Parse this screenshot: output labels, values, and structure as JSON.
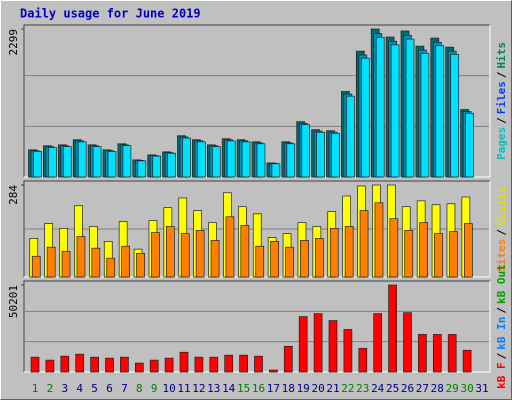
{
  "chart_data": [
    {
      "type": "bar",
      "title": "Daily usage for June 2019",
      "ylim": [
        0,
        2299
      ],
      "yticks": [
        2299
      ],
      "grid_divisions": 3,
      "legend_separator": "/",
      "legend": [
        {
          "name": "Pages",
          "color": "#00c0c0"
        },
        {
          "name": "Files",
          "color": "#0040ff"
        },
        {
          "name": "Hits",
          "color": "#008060"
        }
      ],
      "series": [
        {
          "color": "#006c6c",
          "values": [
            422,
            485,
            500,
            579,
            500,
            422,
            516,
            266,
            344,
            391,
            641,
            579,
            500,
            594,
            579,
            547,
            219,
            547,
            860,
            735,
            719,
            1329,
            1955,
            2299,
            2174,
            2268,
            2033,
            2158,
            2017,
            1048,
            0
          ]
        },
        {
          "color": "#0090c0",
          "values": [
            410,
            470,
            485,
            560,
            485,
            410,
            500,
            258,
            334,
            380,
            622,
            562,
            485,
            576,
            562,
            530,
            212,
            530,
            834,
            713,
            697,
            1289,
            1896,
            2230,
            2109,
            2200,
            1972,
            2093,
            1956,
            1017,
            0
          ]
        },
        {
          "color": "#00e0ff",
          "values": [
            398,
            458,
            472,
            546,
            472,
            398,
            487,
            251,
            325,
            369,
            605,
            546,
            472,
            561,
            546,
            516,
            206,
            516,
            812,
            694,
            679,
            1255,
            1846,
            2171,
            2053,
            2142,
            1920,
            2038,
            1905,
            990,
            0
          ]
        }
      ]
    },
    {
      "type": "bar",
      "ylim": [
        0,
        284
      ],
      "yticks": [
        284
      ],
      "grid_divisions": 2,
      "legend_separator": "/",
      "legend": [
        {
          "name": "Sites",
          "color": "#ff8000"
        },
        {
          "name": "Visits",
          "color": "#e0e000"
        }
      ],
      "series": [
        {
          "color": "#ffff00",
          "values": [
            119,
            165,
            150,
            220,
            156,
            110,
            171,
            86,
            174,
            214,
            244,
            205,
            168,
            260,
            217,
            195,
            122,
            134,
            168,
            156,
            202,
            250,
            281,
            284,
            284,
            217,
            235,
            223,
            226,
            247,
            0
          ]
        },
        {
          "color": "#ff8000",
          "values": [
            64,
            92,
            79,
            125,
            89,
            58,
            95,
            73,
            137,
            156,
            134,
            144,
            113,
            186,
            159,
            95,
            110,
            92,
            113,
            119,
            150,
            156,
            205,
            229,
            180,
            144,
            168,
            134,
            140,
            165,
            0
          ]
        }
      ]
    },
    {
      "type": "bar",
      "ylim": [
        0,
        50201
      ],
      "yticks": [
        50201
      ],
      "grid_divisions": 3,
      "legend_separator": "/",
      "legend": [
        {
          "name": "kB F",
          "color": "#ff0000"
        },
        {
          "name": "kB In",
          "color": "#0080ff"
        },
        {
          "name": "kB Out",
          "color": "#00a000"
        }
      ],
      "series": [
        {
          "color": "#ff0000",
          "values": [
            8557,
            6846,
            9127,
            10268,
            8557,
            7987,
            8557,
            5134,
            6846,
            7987,
            11409,
            8557,
            8557,
            9698,
            9698,
            9127,
            1141,
            14832,
            31946,
            33657,
            29664,
            24530,
            13691,
            33657,
            50201,
            34228,
            21678,
            21678,
            21678,
            12550,
            0
          ]
        }
      ],
      "categories": [
        "1",
        "2",
        "3",
        "4",
        "5",
        "6",
        "7",
        "8",
        "9",
        "10",
        "11",
        "12",
        "13",
        "14",
        "15",
        "16",
        "17",
        "18",
        "19",
        "20",
        "21",
        "22",
        "23",
        "24",
        "25",
        "26",
        "27",
        "28",
        "29",
        "30",
        "31"
      ],
      "category_colors": [
        "#008000",
        "#008000",
        "#000080",
        "#000080",
        "#000080",
        "#000080",
        "#000080",
        "#008000",
        "#008000",
        "#000080",
        "#000080",
        "#000080",
        "#000080",
        "#000080",
        "#008000",
        "#008000",
        "#000080",
        "#000080",
        "#000080",
        "#000080",
        "#000080",
        "#008000",
        "#008000",
        "#000080",
        "#000080",
        "#000080",
        "#000080",
        "#000080",
        "#008000",
        "#008000",
        "#000080"
      ]
    }
  ]
}
